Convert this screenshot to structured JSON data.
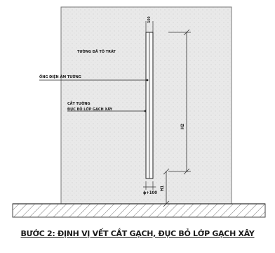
{
  "labels": {
    "plastered_wall": "TƯỜNG ĐÃ TÔ TRÁT",
    "conduit_in_wall": "ỐNG ĐIỆN ÂM TƯỜNG",
    "wall_cut_line1": "CẮT TƯỜNG",
    "wall_cut_line2": "ĐỤC BỎ LỚP GẠCH XÂY",
    "width_dim": "ϕ+100",
    "height_h2": "H2",
    "height_h1": "H1",
    "top_dim": "100"
  },
  "caption": "BƯỚC 2: ĐỊNH VỊ VẾT CẮT GẠCH, ĐỤC BỎ LỚP GẠCH XÂY"
}
